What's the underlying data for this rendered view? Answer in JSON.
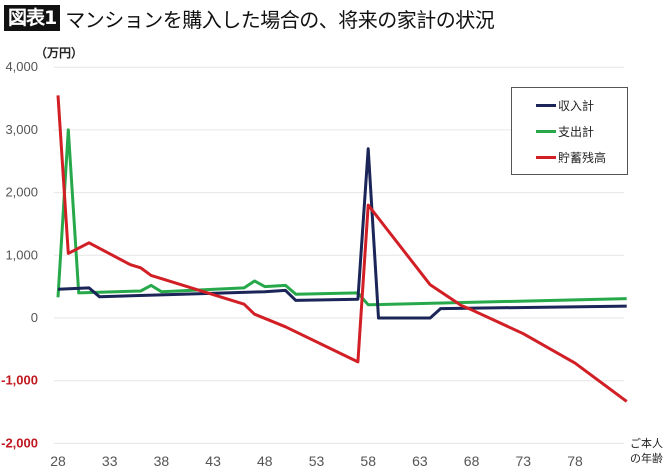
{
  "header": {
    "badge": "図表1",
    "title": "マンションを購入した場合の、将来の家計の状況"
  },
  "axis": {
    "unit_label": "（万円）",
    "x_label_line1": "ご本人",
    "x_label_line2": "の年齢"
  },
  "legend": [
    {
      "label": "収入計",
      "color": "#1b2557"
    },
    {
      "label": "支出計",
      "color": "#27a94b"
    },
    {
      "label": "貯蓄残高",
      "color": "#d21f26"
    }
  ],
  "chart_data": {
    "type": "line",
    "title": "マンションを購入した場合の、将来の家計の状況",
    "xlabel": "ご本人の年齢",
    "ylabel": "（万円）",
    "ylim": [
      -2000,
      4000
    ],
    "yticks": [
      4000,
      3000,
      2000,
      1000,
      0,
      -1000,
      -2000
    ],
    "ytick_labels": [
      "4,000",
      "3,000",
      "2,000",
      "1,000",
      "0",
      "-1,000",
      "-2,000"
    ],
    "xticks": [
      28,
      33,
      38,
      43,
      48,
      53,
      58,
      63,
      68,
      73,
      78
    ],
    "xlim": [
      28,
      83
    ],
    "grid": "horizontal",
    "legend_position": "upper right",
    "series": [
      {
        "name": "収入計",
        "color": "#1b2557",
        "points": [
          [
            28,
            460
          ],
          [
            31,
            480
          ],
          [
            32,
            340
          ],
          [
            40,
            380
          ],
          [
            48,
            420
          ],
          [
            50,
            440
          ],
          [
            51,
            280
          ],
          [
            57,
            300
          ],
          [
            58,
            2700
          ],
          [
            59,
            0
          ],
          [
            64,
            0
          ],
          [
            65,
            150
          ],
          [
            83,
            190
          ]
        ]
      },
      {
        "name": "支出計",
        "color": "#27a94b",
        "points": [
          [
            28,
            330
          ],
          [
            29,
            3000
          ],
          [
            30,
            400
          ],
          [
            36,
            430
          ],
          [
            37,
            520
          ],
          [
            38,
            420
          ],
          [
            46,
            480
          ],
          [
            47,
            590
          ],
          [
            48,
            500
          ],
          [
            50,
            520
          ],
          [
            51,
            380
          ],
          [
            57,
            400
          ],
          [
            58,
            210
          ],
          [
            83,
            310
          ]
        ]
      },
      {
        "name": "貯蓄残高",
        "color": "#d21f26",
        "points": [
          [
            28,
            3550
          ],
          [
            29,
            1030
          ],
          [
            31,
            1200
          ],
          [
            35,
            850
          ],
          [
            36,
            800
          ],
          [
            37,
            680
          ],
          [
            46,
            220
          ],
          [
            47,
            60
          ],
          [
            50,
            -140
          ],
          [
            57,
            -700
          ],
          [
            58,
            1800
          ],
          [
            64,
            530
          ],
          [
            67,
            200
          ],
          [
            68,
            130
          ],
          [
            73,
            -250
          ],
          [
            78,
            -720
          ],
          [
            83,
            -1330
          ]
        ]
      }
    ]
  }
}
